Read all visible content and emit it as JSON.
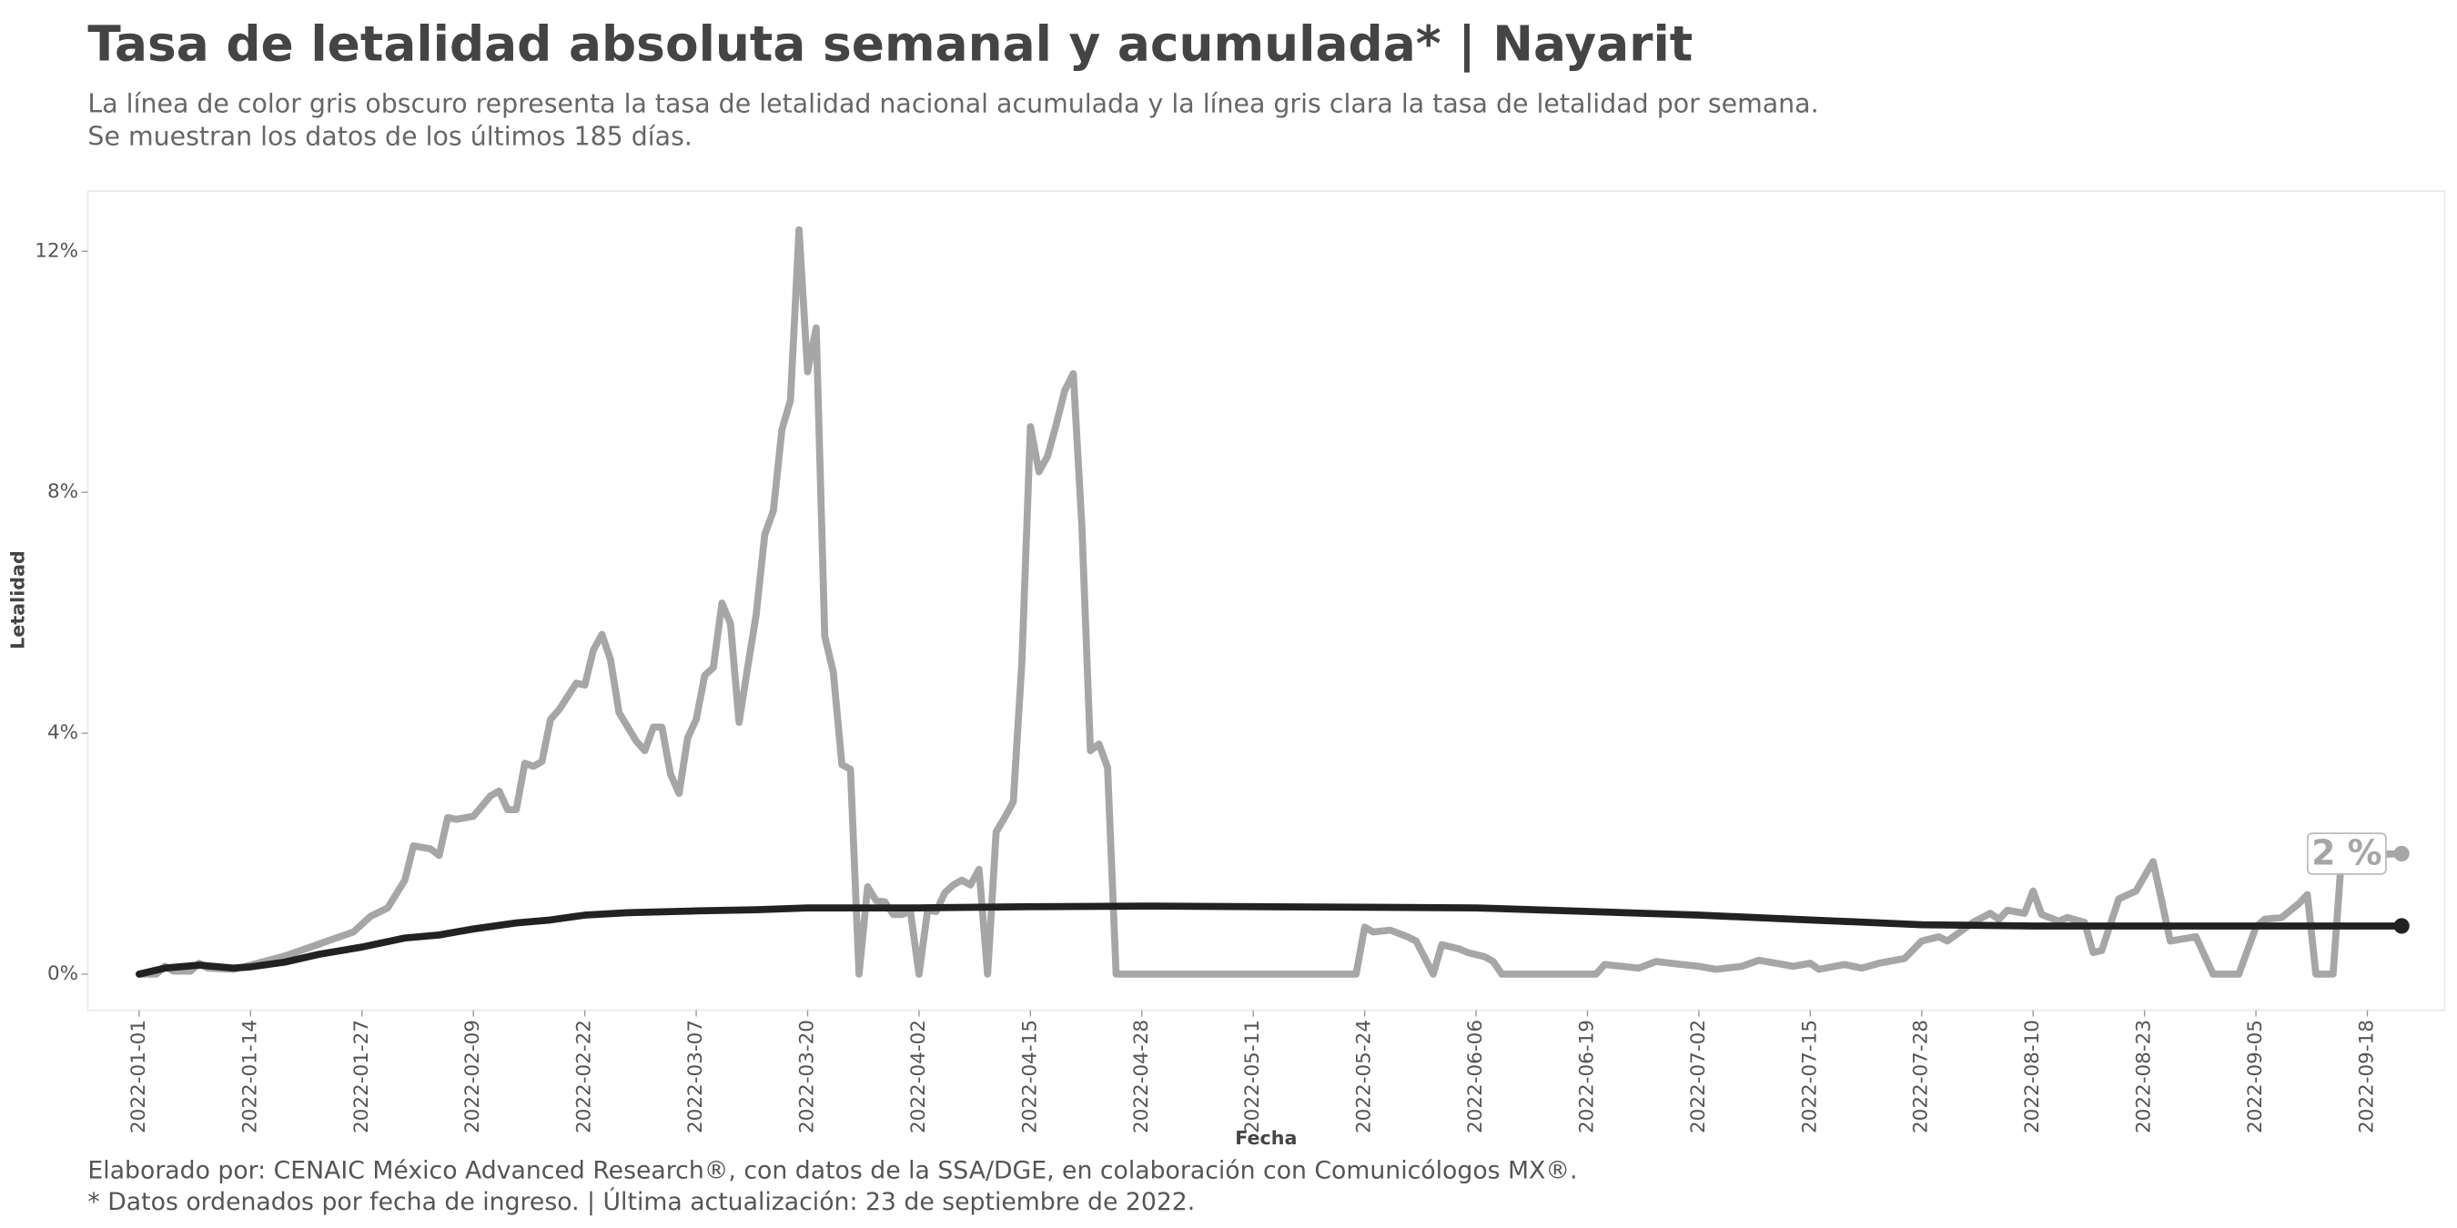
{
  "chart_data": {
    "type": "line",
    "title": "Tasa de letalidad absoluta semanal y acumulada* | Nayarit",
    "subtitle": [
      "La línea de color gris obscuro representa la tasa de letalidad nacional acumulada y la línea gris clara la tasa de letalidad por semana.",
      "Se muestran los datos de los últimos 185 días."
    ],
    "caption": [
      "Elaborado por: CENAIC México Advanced Research®, con datos de la SSA/DGE, en colaboración con Comunicólogos MX®.",
      "* Datos ordenados por fecha de ingreso. | Última actualización: 23 de septiembre de 2022."
    ],
    "x_label": "Fecha",
    "y_label": "Letalidad",
    "xlim": [
      "2021-12-26",
      "2022-09-27"
    ],
    "xticks": [
      "2022-01-01",
      "2022-01-14",
      "2022-01-27",
      "2022-02-09",
      "2022-02-22",
      "2022-03-07",
      "2022-03-20",
      "2022-04-02",
      "2022-04-15",
      "2022-04-28",
      "2022-05-11",
      "2022-05-24",
      "2022-06-06",
      "2022-06-19",
      "2022-07-02",
      "2022-07-15",
      "2022-07-28",
      "2022-08-10",
      "2022-08-23",
      "2022-09-05",
      "2022-09-18"
    ],
    "ylim": [
      -0.6,
      13
    ],
    "yticks": [
      {
        "value": 0,
        "label": "0%"
      },
      {
        "value": 4,
        "label": "4%"
      },
      {
        "value": 8,
        "label": "8%"
      },
      {
        "value": 12,
        "label": "12%"
      }
    ],
    "grid": false,
    "series": [
      {
        "color": "#a6a6a6",
        "x": [
          "2022-01-01",
          "2022-01-03",
          "2022-01-04",
          "2022-01-05",
          "2022-01-07",
          "2022-01-08",
          "2022-01-09",
          "2022-01-12",
          "2022-01-14",
          "2022-01-18",
          "2022-01-22",
          "2022-01-24",
          "2022-01-26",
          "2022-01-28",
          "2022-01-30",
          "2022-02-01",
          "2022-02-02",
          "2022-02-04",
          "2022-02-05",
          "2022-02-06",
          "2022-02-07",
          "2022-02-09",
          "2022-02-11",
          "2022-02-12",
          "2022-02-13",
          "2022-02-14",
          "2022-02-15",
          "2022-02-16",
          "2022-02-17",
          "2022-02-18",
          "2022-02-19",
          "2022-02-21",
          "2022-02-22",
          "2022-02-23",
          "2022-02-24",
          "2022-02-25",
          "2022-02-26",
          "2022-02-28",
          "2022-03-01",
          "2022-03-02",
          "2022-03-03",
          "2022-03-04",
          "2022-03-05",
          "2022-03-06",
          "2022-03-07",
          "2022-03-08",
          "2022-03-09",
          "2022-03-10",
          "2022-03-11",
          "2022-03-12",
          "2022-03-13",
          "2022-03-14",
          "2022-03-15",
          "2022-03-16",
          "2022-03-17",
          "2022-03-18",
          "2022-03-19",
          "2022-03-20",
          "2022-03-21",
          "2022-03-22",
          "2022-03-23",
          "2022-03-24",
          "2022-03-25",
          "2022-03-26",
          "2022-03-27",
          "2022-03-28",
          "2022-03-29",
          "2022-03-30",
          "2022-03-31",
          "2022-04-01",
          "2022-04-02",
          "2022-04-03",
          "2022-04-04",
          "2022-04-05",
          "2022-04-06",
          "2022-04-07",
          "2022-04-08",
          "2022-04-09",
          "2022-04-10",
          "2022-04-11",
          "2022-04-12",
          "2022-04-13",
          "2022-04-14",
          "2022-04-15",
          "2022-04-16",
          "2022-04-17",
          "2022-04-18",
          "2022-04-19",
          "2022-04-20",
          "2022-04-21",
          "2022-04-22",
          "2022-04-23",
          "2022-04-24",
          "2022-04-25",
          "2022-05-23",
          "2022-05-24",
          "2022-05-25",
          "2022-05-27",
          "2022-05-29",
          "2022-05-30",
          "2022-06-01",
          "2022-06-02",
          "2022-06-04",
          "2022-06-05",
          "2022-06-07",
          "2022-06-08",
          "2022-06-09",
          "2022-06-20",
          "2022-06-21",
          "2022-06-23",
          "2022-06-25",
          "2022-06-27",
          "2022-06-30",
          "2022-07-02",
          "2022-07-04",
          "2022-07-07",
          "2022-07-09",
          "2022-07-11",
          "2022-07-13",
          "2022-07-15",
          "2022-07-16",
          "2022-07-19",
          "2022-07-21",
          "2022-07-23",
          "2022-07-26",
          "2022-07-28",
          "2022-07-30",
          "2022-07-31",
          "2022-08-03",
          "2022-08-05",
          "2022-08-06",
          "2022-08-07",
          "2022-08-09",
          "2022-08-10",
          "2022-08-11",
          "2022-08-13",
          "2022-08-14",
          "2022-08-16",
          "2022-08-17",
          "2022-08-18",
          "2022-08-20",
          "2022-08-22",
          "2022-08-24",
          "2022-08-25",
          "2022-08-26",
          "2022-08-29",
          "2022-08-31",
          "2022-09-03",
          "2022-09-05",
          "2022-09-06",
          "2022-09-08",
          "2022-09-10",
          "2022-09-11",
          "2022-09-12",
          "2022-09-14",
          "2022-09-15",
          "2022-09-22"
        ],
        "values": [
          0,
          0,
          0.13,
          0.05,
          0.05,
          0.18,
          0.1,
          0.08,
          0.15,
          0.3,
          0.5,
          0.6,
          0.7,
          0.96,
          1.1,
          1.56,
          2.13,
          2.08,
          1.97,
          2.6,
          2.57,
          2.62,
          2.96,
          3.04,
          2.73,
          2.73,
          3.5,
          3.45,
          3.53,
          4.23,
          4.39,
          4.83,
          4.8,
          5.38,
          5.64,
          5.22,
          4.34,
          3.87,
          3.71,
          4.1,
          4.1,
          3.32,
          3.0,
          3.92,
          4.23,
          4.96,
          5.09,
          6.16,
          5.82,
          4.18,
          5.09,
          5.97,
          7.3,
          7.69,
          9.04,
          9.53,
          12.36,
          10.0,
          10.73,
          5.61,
          5.01,
          3.48,
          3.4,
          0,
          1.45,
          1.22,
          1.2,
          0.99,
          0.99,
          1.04,
          0,
          1.06,
          1.04,
          1.35,
          1.48,
          1.56,
          1.48,
          1.74,
          0,
          2.36,
          2.6,
          2.86,
          5.17,
          9.09,
          8.34,
          8.6,
          9.12,
          9.69,
          9.97,
          7.45,
          3.71,
          3.82,
          3.43,
          0,
          0,
          0.78,
          0.7,
          0.73,
          0.62,
          0.55,
          0,
          0.49,
          0.42,
          0.36,
          0.29,
          0.21,
          0,
          0,
          0.16,
          0.13,
          0.1,
          0.21,
          0.16,
          0.13,
          0.08,
          0.13,
          0.23,
          0.18,
          0.13,
          0.18,
          0.08,
          0.16,
          0.1,
          0.18,
          0.26,
          0.55,
          0.62,
          0.55,
          0.86,
          1.01,
          0.91,
          1.06,
          1.01,
          1.38,
          0.99,
          0.88,
          0.94,
          0.86,
          0.36,
          0.39,
          1.25,
          1.38,
          1.87,
          1.22,
          0.55,
          0.62,
          0,
          0,
          0.78,
          0.91,
          0.94,
          1.17,
          1.32,
          0,
          0,
          1.97,
          2.0
        ]
      },
      {
        "color": "#222222",
        "x": [
          "2022-01-01",
          "2022-01-04",
          "2022-01-08",
          "2022-01-12",
          "2022-01-14",
          "2022-01-18",
          "2022-01-22",
          "2022-01-27",
          "2022-02-01",
          "2022-02-05",
          "2022-02-09",
          "2022-02-14",
          "2022-02-18",
          "2022-02-22",
          "2022-02-27",
          "2022-03-07",
          "2022-03-14",
          "2022-03-20",
          "2022-04-02",
          "2022-04-15",
          "2022-04-28",
          "2022-05-11",
          "2022-05-24",
          "2022-06-06",
          "2022-06-19",
          "2022-07-02",
          "2022-07-15",
          "2022-07-28",
          "2022-08-10",
          "2022-08-23",
          "2022-09-05",
          "2022-09-22"
        ],
        "values": [
          0,
          0.1,
          0.15,
          0.1,
          0.12,
          0.2,
          0.33,
          0.45,
          0.6,
          0.65,
          0.75,
          0.85,
          0.9,
          0.98,
          1.02,
          1.05,
          1.07,
          1.1,
          1.1,
          1.12,
          1.13,
          1.12,
          1.11,
          1.1,
          1.04,
          0.98,
          0.9,
          0.82,
          0.8,
          0.8,
          0.8,
          0.8
        ]
      }
    ],
    "annotations": [
      {
        "text": "2 %",
        "x": "2022-09-22",
        "y": 2
      }
    ]
  }
}
